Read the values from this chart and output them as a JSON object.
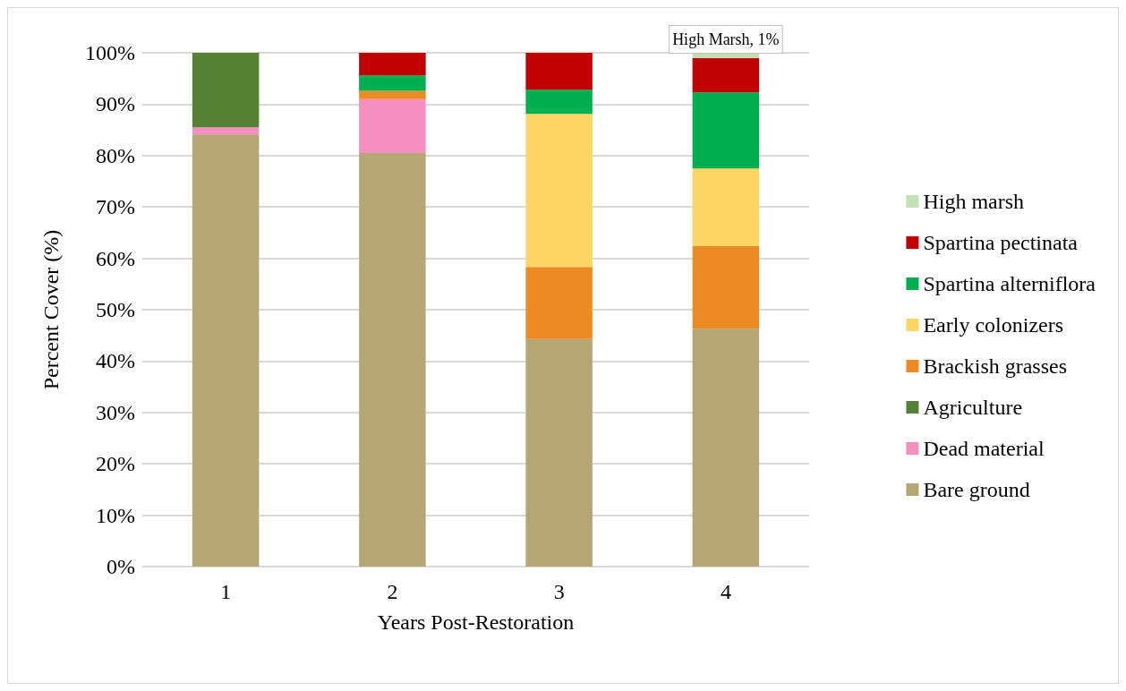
{
  "chart_data": {
    "type": "bar",
    "stacked": true,
    "xlabel": "Years Post-Restoration",
    "ylabel": "Percent Cover (%)",
    "categories": [
      "1",
      "2",
      "3",
      "4"
    ],
    "series": [
      {
        "name": "Bare ground",
        "color": "#b5a773",
        "values": [
          84.1,
          80.5,
          44.3,
          46.3
        ]
      },
      {
        "name": "Dead material",
        "color": "#f48fc0",
        "values": [
          1.4,
          10.5,
          null,
          null
        ]
      },
      {
        "name": "Agriculture",
        "color": "#548235",
        "values": [
          14.5,
          null,
          null,
          null
        ]
      },
      {
        "name": "Brackish grasses",
        "color": "#ec8a24",
        "values": [
          null,
          1.6,
          14.0,
          16.1
        ]
      },
      {
        "name": "Early colonizers",
        "color": "#fdd766",
        "values": [
          null,
          null,
          29.8,
          15.1
        ]
      },
      {
        "name": "Spartina alterniflora",
        "color": "#00b050",
        "values": [
          null,
          3.0,
          4.7,
          14.8
        ]
      },
      {
        "name": "Spartina pectinata",
        "color": "#c00000",
        "values": [
          null,
          4.4,
          7.2,
          6.7
        ]
      },
      {
        "name": "High marsh",
        "color": "#c5e0b4",
        "values": [
          null,
          null,
          null,
          1
        ],
        "value_labels": [
          null,
          null,
          null,
          "High Marsh, 1%"
        ]
      }
    ],
    "ylim": [
      0,
      100
    ],
    "yticks": [
      {
        "value": 0,
        "label": "0%"
      },
      {
        "value": 10,
        "label": "10%"
      },
      {
        "value": 20,
        "label": "20%"
      },
      {
        "value": 30,
        "label": "30%"
      },
      {
        "value": 40,
        "label": "40%"
      },
      {
        "value": 50,
        "label": "50%"
      },
      {
        "value": 60,
        "label": "60%"
      },
      {
        "value": 70,
        "label": "70%"
      },
      {
        "value": 80,
        "label": "80%"
      },
      {
        "value": 90,
        "label": "90%"
      },
      {
        "value": 100,
        "label": "100%"
      }
    ],
    "grid": "y",
    "legend": "right"
  }
}
